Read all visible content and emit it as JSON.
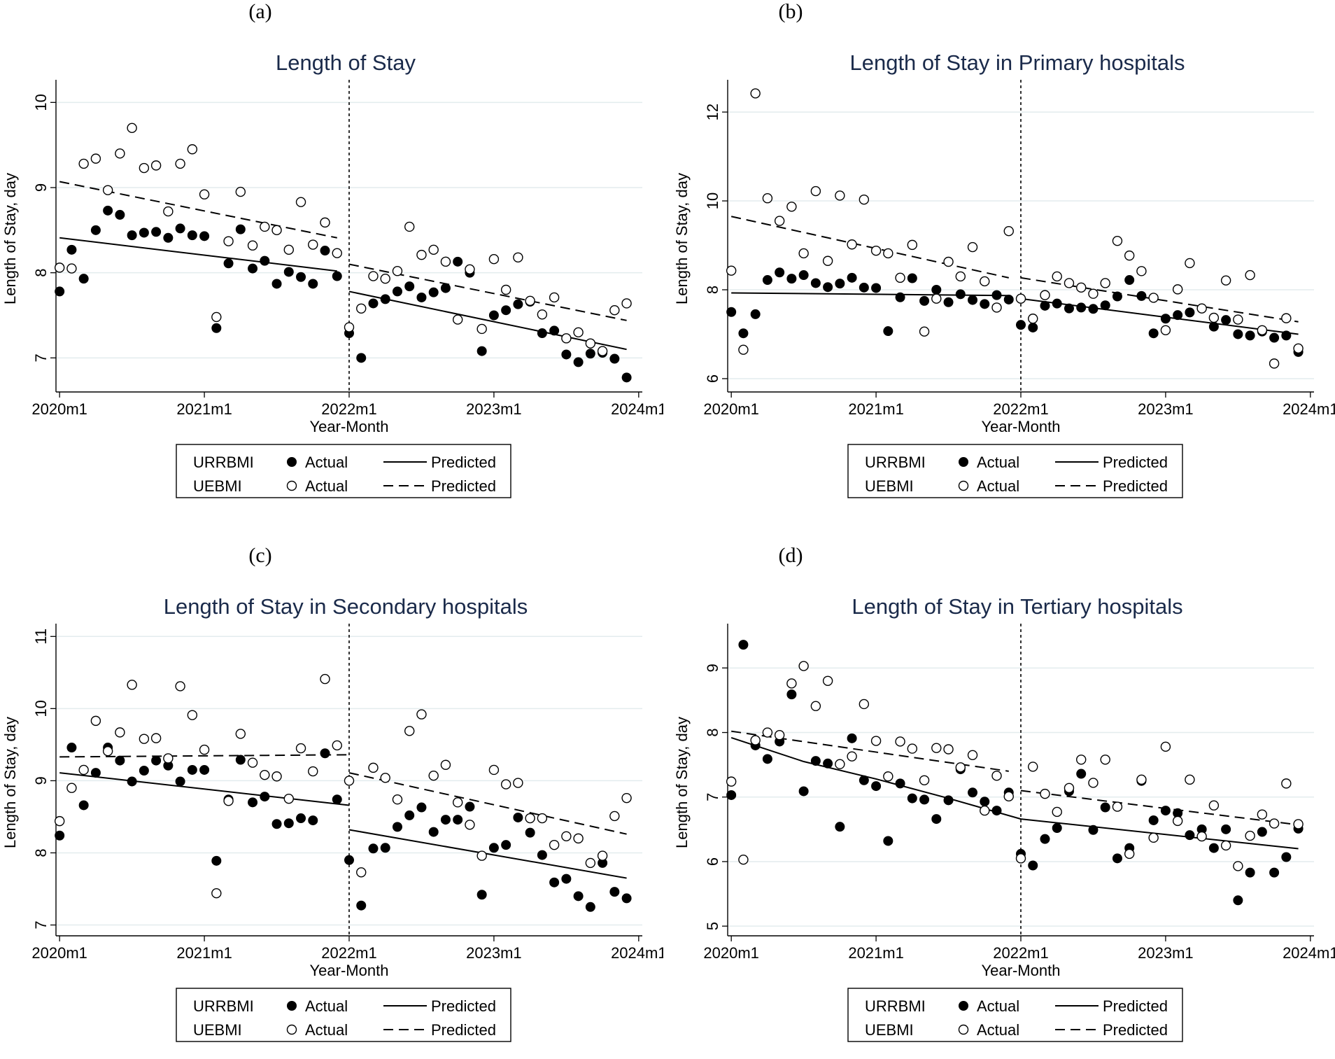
{
  "figure": {
    "panel_labels": [
      "(a)",
      "(b)",
      "(c)",
      "(d)"
    ]
  },
  "chart_data": [
    {
      "type": "scatter",
      "panel": "(a)",
      "title": "Length of Stay",
      "xlabel": "Year-Month",
      "ylabel": "Length of Stay,  day",
      "xlim": [
        0,
        47
      ],
      "ylim": [
        6.6,
        10.2
      ],
      "yticks": [
        7,
        8,
        9,
        10
      ],
      "xticks": [
        0,
        12,
        24,
        36,
        48
      ],
      "xtick_labels": [
        "2020m1",
        "2021m1",
        "2022m1",
        "2023m1",
        "2024m1"
      ],
      "intervention_x": 24,
      "legend": {
        "placement": "bottom",
        "group_labels": [
          "URRBMI",
          "UEBMI"
        ],
        "actual_label": "Actual",
        "predicted_label": "Predicted"
      },
      "series": [
        {
          "name": "URRBMI Actual",
          "marker": "filled",
          "values": [
            7.78,
            8.27,
            7.93,
            8.5,
            8.73,
            8.68,
            8.44,
            8.47,
            8.48,
            8.41,
            8.52,
            8.44,
            8.43,
            7.35,
            8.11,
            8.51,
            8.05,
            8.14,
            7.87,
            8.01,
            7.95,
            7.87,
            8.26,
            7.96,
            7.29,
            7.0,
            7.64,
            7.69,
            7.78,
            7.84,
            7.71,
            7.77,
            7.82,
            8.13,
            8.0,
            7.08,
            7.5,
            7.56,
            7.63,
            7.66,
            7.29,
            7.32,
            7.04,
            6.95,
            7.05,
            7.06,
            6.99,
            6.77
          ]
        },
        {
          "name": "UEBMI Actual",
          "marker": "hollow",
          "values": [
            8.06,
            8.05,
            9.28,
            9.34,
            8.97,
            9.4,
            9.7,
            9.23,
            9.26,
            8.72,
            9.28,
            9.45,
            8.92,
            7.48,
            8.37,
            8.95,
            8.32,
            8.54,
            8.5,
            8.27,
            8.83,
            8.33,
            8.59,
            8.23,
            7.36,
            7.58,
            7.96,
            7.93,
            8.02,
            8.54,
            8.21,
            8.27,
            8.13,
            7.45,
            8.04,
            7.34,
            8.16,
            7.8,
            8.18,
            7.67,
            7.51,
            7.71,
            7.23,
            7.3,
            7.17,
            7.08,
            7.56,
            7.64
          ]
        }
      ],
      "predicted": [
        {
          "name": "URRBMI Predicted",
          "style": "solid",
          "segments": [
            [
              [
                0,
                8.41
              ],
              [
                23,
                8.02
              ]
            ],
            [
              [
                24,
                7.78
              ],
              [
                47,
                7.1
              ]
            ]
          ]
        },
        {
          "name": "UEBMI Predicted",
          "style": "dashed",
          "segments": [
            [
              [
                0,
                9.07
              ],
              [
                23,
                8.41
              ]
            ],
            [
              [
                24,
                8.1
              ],
              [
                47,
                7.44
              ]
            ]
          ]
        }
      ]
    },
    {
      "type": "scatter",
      "panel": "(b)",
      "title": "Length of Stay in Primary hospitals",
      "xlabel": "Year-Month",
      "ylabel": "Length of Stay,  day",
      "xlim": [
        0,
        47
      ],
      "ylim": [
        5.7,
        12.6
      ],
      "yticks": [
        6,
        8,
        10,
        12
      ],
      "xticks": [
        0,
        12,
        24,
        36,
        48
      ],
      "xtick_labels": [
        "2020m1",
        "2021m1",
        "2022m1",
        "2023m1",
        "2024m1"
      ],
      "intervention_x": 24,
      "legend": {
        "placement": "bottom",
        "group_labels": [
          "URRBMI",
          "UEBMI"
        ],
        "actual_label": "Actual",
        "predicted_label": "Predicted"
      },
      "series": [
        {
          "name": "URRBMI Actual",
          "marker": "filled",
          "values": [
            7.5,
            7.02,
            7.45,
            8.22,
            8.39,
            8.25,
            8.33,
            8.15,
            8.06,
            8.14,
            8.27,
            8.05,
            8.04,
            7.07,
            7.83,
            8.26,
            7.75,
            8.0,
            7.72,
            7.9,
            7.77,
            7.68,
            7.88,
            7.78,
            7.21,
            7.15,
            7.64,
            7.69,
            7.58,
            7.6,
            7.57,
            7.65,
            7.85,
            8.22,
            7.86,
            7.02,
            7.35,
            7.43,
            7.49,
            7.58,
            7.17,
            7.32,
            7.0,
            6.97,
            7.06,
            6.92,
            6.97,
            6.6
          ]
        },
        {
          "name": "UEBMI Actual",
          "marker": "hollow",
          "values": [
            8.43,
            6.65,
            12.42,
            10.06,
            9.55,
            9.87,
            8.82,
            10.22,
            8.65,
            10.12,
            9.02,
            10.03,
            8.88,
            8.82,
            8.27,
            9.01,
            7.06,
            7.8,
            8.63,
            8.3,
            8.96,
            8.19,
            7.6,
            9.32,
            7.8,
            7.35,
            7.88,
            8.3,
            8.15,
            8.05,
            7.91,
            8.15,
            9.1,
            8.77,
            8.42,
            7.82,
            7.09,
            8.01,
            8.6,
            7.58,
            7.37,
            8.21,
            7.33,
            8.33,
            7.09,
            6.34,
            7.36,
            6.68
          ]
        }
      ],
      "predicted": [
        {
          "name": "URRBMI Predicted",
          "style": "solid",
          "segments": [
            [
              [
                0,
                7.93
              ],
              [
                23,
                7.87
              ]
            ],
            [
              [
                24,
                7.8
              ],
              [
                47,
                7.0
              ]
            ]
          ]
        },
        {
          "name": "UEBMI Predicted",
          "style": "dashed",
          "segments": [
            [
              [
                0,
                9.65
              ],
              [
                23,
                8.27
              ]
            ],
            [
              [
                24,
                8.27
              ],
              [
                47,
                7.28
              ]
            ]
          ]
        }
      ]
    },
    {
      "type": "scatter",
      "panel": "(c)",
      "title": "Length of Stay in Secondary hospitals",
      "xlabel": "Year-Month",
      "ylabel": "Length of Stay,  day",
      "xlim": [
        0,
        47
      ],
      "ylim": [
        6.85,
        11.1
      ],
      "yticks": [
        7,
        8,
        9,
        10,
        11
      ],
      "xticks": [
        0,
        12,
        24,
        36,
        48
      ],
      "xtick_labels": [
        "2020m1",
        "2021m1",
        "2022m1",
        "2023m1",
        "2024m1"
      ],
      "intervention_x": 24,
      "legend": {
        "placement": "bottom",
        "group_labels": [
          "URRBMI",
          "UEBMI"
        ],
        "actual_label": "Actual",
        "predicted_label": "Predicted"
      },
      "series": [
        {
          "name": "URRBMI Actual",
          "marker": "filled",
          "values": [
            8.24,
            9.46,
            8.66,
            9.11,
            9.46,
            9.28,
            8.99,
            9.14,
            9.28,
            9.21,
            8.99,
            9.15,
            9.15,
            7.89,
            8.74,
            9.29,
            8.7,
            8.78,
            8.4,
            8.41,
            8.48,
            8.45,
            9.38,
            8.74,
            7.9,
            7.27,
            8.06,
            8.07,
            8.36,
            8.52,
            8.63,
            8.29,
            8.46,
            8.46,
            8.64,
            7.42,
            8.07,
            8.11,
            8.49,
            8.28,
            7.97,
            7.59,
            7.64,
            7.4,
            7.25,
            7.86,
            7.46,
            7.37
          ]
        },
        {
          "name": "UEBMI Actual",
          "marker": "hollow",
          "values": [
            8.44,
            8.9,
            9.15,
            9.83,
            9.41,
            9.67,
            10.33,
            9.58,
            9.59,
            9.31,
            10.31,
            9.91,
            9.43,
            7.44,
            8.72,
            9.65,
            9.25,
            9.08,
            9.06,
            8.75,
            9.45,
            9.13,
            10.41,
            9.49,
            9.0,
            7.73,
            9.18,
            9.04,
            8.74,
            9.69,
            9.92,
            9.07,
            9.22,
            8.7,
            8.39,
            7.96,
            9.15,
            8.95,
            8.97,
            8.48,
            8.48,
            8.11,
            8.23,
            8.2,
            7.86,
            7.96,
            8.51,
            8.76
          ]
        }
      ],
      "predicted": [
        {
          "name": "URRBMI Predicted",
          "style": "solid",
          "segments": [
            [
              [
                0,
                9.11
              ],
              [
                24,
                8.66
              ]
            ],
            [
              [
                24,
                8.32
              ],
              [
                47,
                7.65
              ]
            ]
          ]
        },
        {
          "name": "UEBMI Predicted",
          "style": "dashed",
          "segments": [
            [
              [
                0,
                9.33
              ],
              [
                24,
                9.36
              ]
            ],
            [
              [
                24,
                9.11
              ],
              [
                47,
                8.26
              ]
            ]
          ]
        }
      ]
    },
    {
      "type": "scatter",
      "panel": "(d)",
      "title": "Length of Stay in Tertiary hospitals",
      "xlabel": "Year-Month",
      "ylabel": "Length of Stay,  day",
      "xlim": [
        0,
        47
      ],
      "ylim": [
        4.85,
        9.6
      ],
      "yticks": [
        5,
        6,
        7,
        8,
        9
      ],
      "xticks": [
        0,
        12,
        24,
        36,
        48
      ],
      "xtick_labels": [
        "2020m1",
        "2021m1",
        "2022m1",
        "2023m1",
        "2024m1"
      ],
      "intervention_x": 24,
      "legend": {
        "placement": "bottom",
        "group_labels": [
          "URRBMI",
          "UEBMI"
        ],
        "actual_label": "Actual",
        "predicted_label": "Predicted"
      },
      "series": [
        {
          "name": "URRBMI Actual",
          "marker": "filled",
          "values": [
            7.03,
            9.36,
            7.8,
            7.59,
            7.86,
            8.59,
            7.09,
            7.56,
            7.52,
            6.54,
            7.91,
            7.26,
            7.17,
            6.32,
            7.21,
            6.98,
            6.96,
            6.66,
            6.95,
            7.43,
            7.07,
            6.93,
            6.79,
            7.07,
            6.12,
            5.94,
            6.35,
            6.52,
            7.09,
            7.36,
            6.49,
            6.84,
            6.05,
            6.21,
            7.25,
            6.64,
            6.79,
            6.75,
            6.41,
            6.5,
            6.21,
            6.5,
            5.4,
            5.83,
            6.46,
            5.83,
            6.07,
            6.51
          ]
        },
        {
          "name": "UEBMI Actual",
          "marker": "hollow",
          "values": [
            7.24,
            6.03,
            7.88,
            8.0,
            7.96,
            8.76,
            9.03,
            8.41,
            8.8,
            7.51,
            7.63,
            8.44,
            7.87,
            7.32,
            7.86,
            7.75,
            7.26,
            7.76,
            7.74,
            7.46,
            7.65,
            6.79,
            7.33,
            7.01,
            6.05,
            7.47,
            7.05,
            6.77,
            7.14,
            7.58,
            7.22,
            7.58,
            6.85,
            6.12,
            7.27,
            6.37,
            7.78,
            6.63,
            7.27,
            6.39,
            6.87,
            6.25,
            5.93,
            6.4,
            6.73,
            6.59,
            7.21,
            6.58
          ]
        }
      ],
      "predicted": [
        {
          "name": "URRBMI Predicted",
          "style": "solid",
          "segments": [
            [
              [
                0,
                7.92
              ],
              [
                6,
                7.55
              ],
              [
                12,
                7.28
              ],
              [
                18,
                6.98
              ],
              [
                24,
                6.66
              ],
              [
                47,
                6.2
              ]
            ]
          ]
        },
        {
          "name": "UEBMI Predicted",
          "style": "dashed",
          "segments": [
            [
              [
                0,
                8.02
              ],
              [
                23,
                7.4
              ]
            ],
            [
              [
                24,
                7.1
              ],
              [
                47,
                6.57
              ]
            ]
          ]
        }
      ]
    }
  ]
}
